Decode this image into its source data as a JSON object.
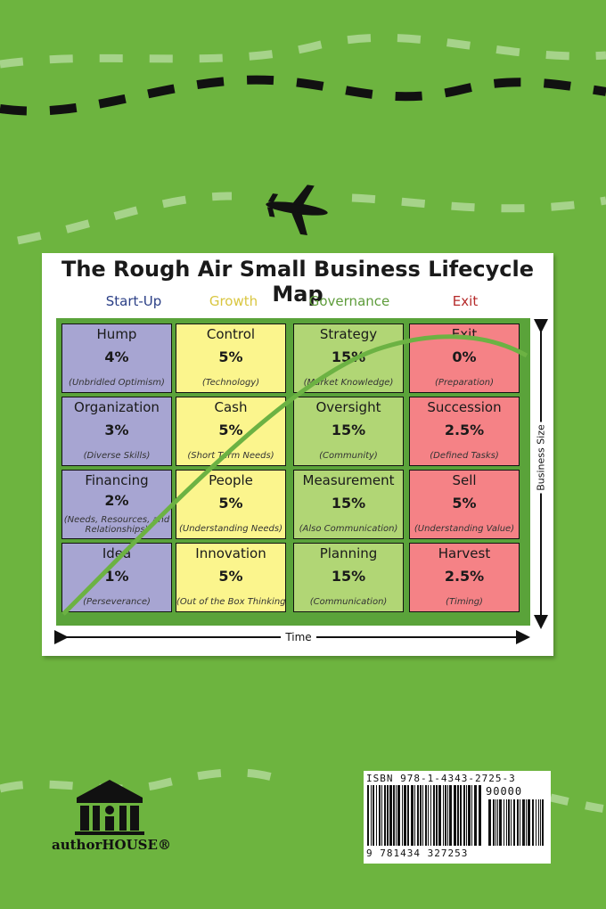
{
  "cover": {
    "title": "The Rough Air Small Business Lifecycle Map",
    "phases": [
      {
        "label": "Start-Up",
        "color": "#2b3f86"
      },
      {
        "label": "Growth",
        "color": "#d9c640"
      },
      {
        "label": "Governance",
        "color": "#5e9c3b"
      },
      {
        "label": "Exit",
        "color": "#b52a2a"
      }
    ],
    "rows": [
      [
        {
          "name": "Hump",
          "pct": "4%",
          "sub": "(Unbridled Optimism)"
        },
        {
          "name": "Control",
          "pct": "5%",
          "sub": "(Technology)"
        },
        {
          "name": "Strategy",
          "pct": "15%",
          "sub": "(Market Knowledge)"
        },
        {
          "name": "Exit",
          "pct": "0%",
          "sub": "(Preparation)"
        }
      ],
      [
        {
          "name": "Organization",
          "pct": "3%",
          "sub": "(Diverse Skills)"
        },
        {
          "name": "Cash",
          "pct": "5%",
          "sub": "(Short Term Needs)"
        },
        {
          "name": "Oversight",
          "pct": "15%",
          "sub": "(Community)"
        },
        {
          "name": "Succession",
          "pct": "2.5%",
          "sub": "(Defined Tasks)"
        }
      ],
      [
        {
          "name": "Financing",
          "pct": "2%",
          "sub": "(Needs, Resources, and Relationships)"
        },
        {
          "name": "People",
          "pct": "5%",
          "sub": "(Understanding Needs)"
        },
        {
          "name": "Measurement",
          "pct": "15%",
          "sub": "(Also Communication)"
        },
        {
          "name": "Sell",
          "pct": "5%",
          "sub": "(Understanding Value)"
        }
      ],
      [
        {
          "name": "Idea",
          "pct": "1%",
          "sub": "(Perseverance)"
        },
        {
          "name": "Innovation",
          "pct": "5%",
          "sub": "(Out of the Box Thinking)"
        },
        {
          "name": "Planning",
          "pct": "15%",
          "sub": "(Communication)"
        },
        {
          "name": "Harvest",
          "pct": "2.5%",
          "sub": "(Timing)"
        }
      ]
    ],
    "cell_colors": [
      "#a7a5d2",
      "#fbf58d",
      "#b1d675",
      "#f58286"
    ],
    "x_axis_label": "Time",
    "y_axis_label": "Business Size"
  },
  "barcode": {
    "isbn_text": "ISBN 978-1-4343-2725-3",
    "price_code": "90000",
    "digits": "9 781434 327253"
  },
  "publisher": {
    "name": "authorHOUSE®"
  },
  "colors": {
    "background": "#6db43f",
    "curve": "#6cb243"
  }
}
